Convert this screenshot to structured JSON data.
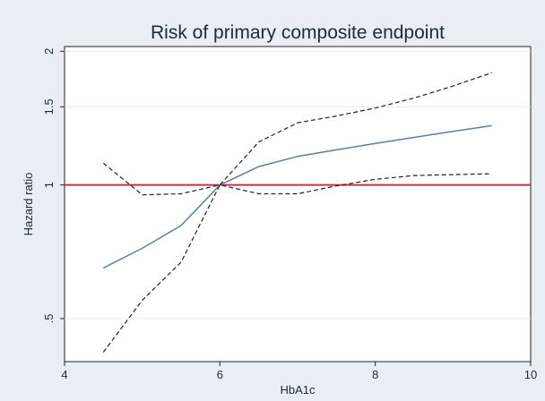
{
  "chart_data": {
    "type": "line",
    "title": "Risk of primary composite endpoint",
    "xlabel": "HbA1c",
    "ylabel": "Hazard ratio",
    "xlim": [
      4,
      10
    ],
    "ylim": [
      0.4,
      2.05
    ],
    "y_scale": "log",
    "x_ticks": [
      4,
      6,
      8,
      10
    ],
    "y_ticks": [
      {
        "value": 0.5,
        "label": ".5"
      },
      {
        "value": 1,
        "label": "1"
      },
      {
        "value": 1.5,
        "label": "1.5"
      },
      {
        "value": 2,
        "label": "2"
      }
    ],
    "grid": "horizontal",
    "reference_line": {
      "y": 1,
      "color": "#c0334d"
    },
    "series": [
      {
        "role": "estimate",
        "style": "solid",
        "color": "#5a7fa6",
        "points": [
          [
            4.5,
            0.65
          ],
          [
            5,
            0.72
          ],
          [
            5.5,
            0.81
          ],
          [
            6,
            1.0
          ],
          [
            6.5,
            1.1
          ],
          [
            7,
            1.16
          ],
          [
            7.5,
            1.2
          ],
          [
            8,
            1.24
          ],
          [
            8.5,
            1.28
          ],
          [
            9,
            1.32
          ],
          [
            9.5,
            1.36
          ]
        ]
      },
      {
        "role": "upper",
        "style": "dashed",
        "color": "#222222",
        "points": [
          [
            4.5,
            1.12
          ],
          [
            5,
            0.95
          ],
          [
            5.5,
            0.955
          ],
          [
            6,
            1.0
          ],
          [
            6.5,
            1.25
          ],
          [
            7,
            1.38
          ],
          [
            7.5,
            1.43
          ],
          [
            8,
            1.49
          ],
          [
            8.5,
            1.57
          ],
          [
            9,
            1.67
          ],
          [
            9.5,
            1.79
          ]
        ]
      },
      {
        "role": "lower",
        "style": "dashed",
        "color": "#222222",
        "points": [
          [
            4.5,
            0.42
          ],
          [
            5,
            0.55
          ],
          [
            5.5,
            0.67
          ],
          [
            6,
            1.0
          ],
          [
            6.5,
            0.955
          ],
          [
            7,
            0.955
          ],
          [
            7.5,
            0.995
          ],
          [
            8,
            1.03
          ],
          [
            8.5,
            1.05
          ],
          [
            9,
            1.055
          ],
          [
            9.5,
            1.06
          ]
        ]
      }
    ]
  }
}
